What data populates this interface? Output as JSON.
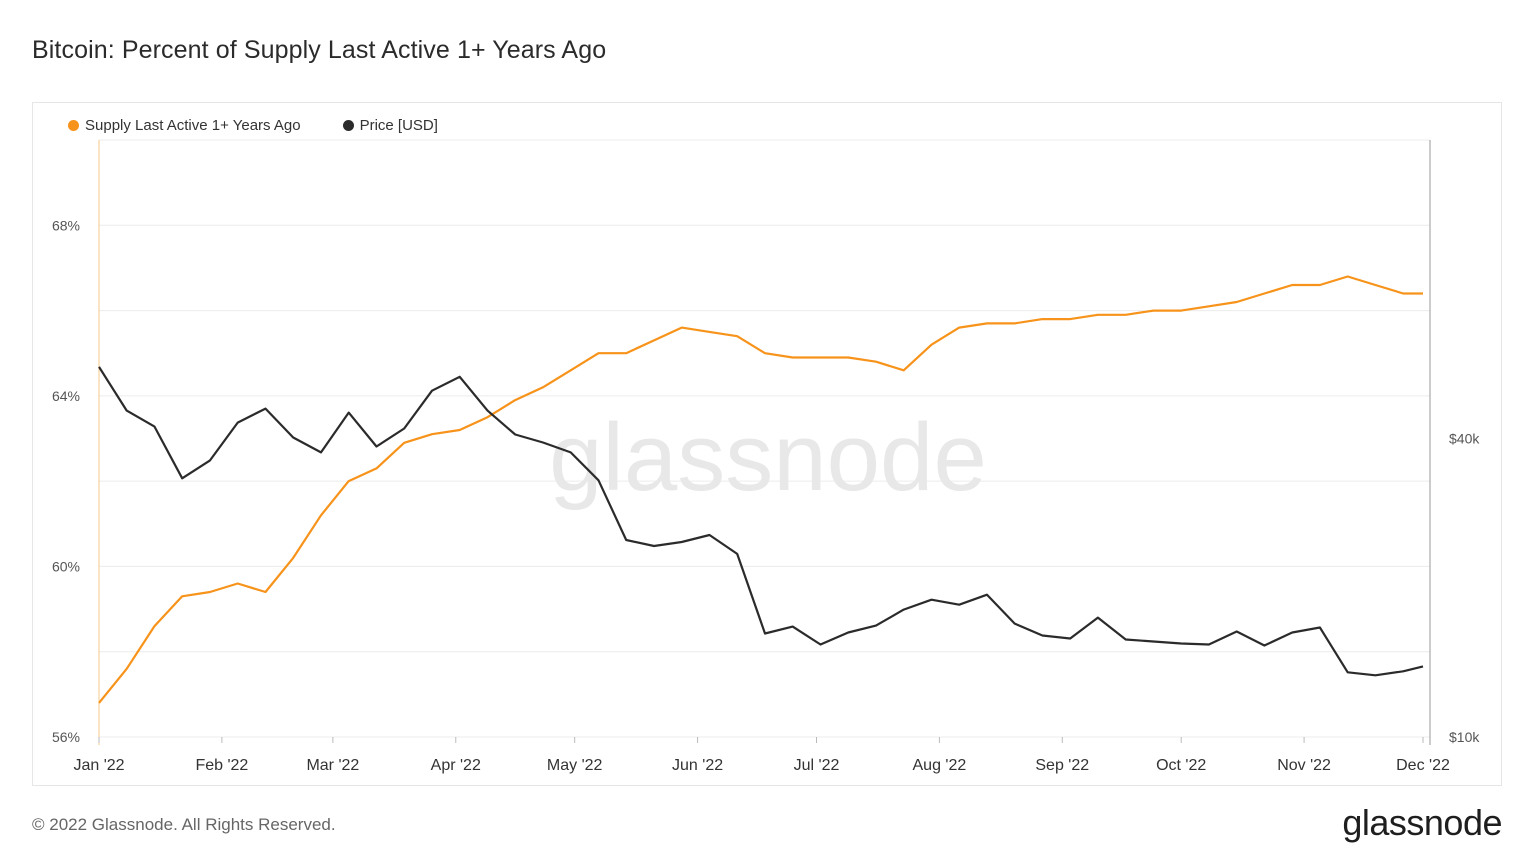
{
  "title": "Bitcoin: Percent of Supply Last Active 1+ Years Ago",
  "footer": {
    "copyright": "© 2022 Glassnode. All Rights Reserved.",
    "logo": "glassnode"
  },
  "watermark": "glassnode",
  "colors": {
    "supply": "#f7931a",
    "price": "#2b2b2b",
    "grid": "#ececec"
  },
  "chart_data": {
    "type": "line",
    "legend_position": "top-left",
    "grid": true,
    "x_ticks": [
      "Jan '22",
      "Feb '22",
      "Mar '22",
      "Apr '22",
      "May '22",
      "Jun '22",
      "Jul '22",
      "Aug '22",
      "Sep '22",
      "Oct '22",
      "Nov '22",
      "Dec '22"
    ],
    "y_left": {
      "ticks": [
        "56%",
        "60%",
        "64%",
        "68%"
      ],
      "range": [
        56,
        70
      ]
    },
    "y_right": {
      "ticks": [
        "$10k",
        "$40k"
      ],
      "range": [
        10000,
        70000
      ],
      "scale": "linear"
    },
    "x": [
      "2022-01-01",
      "2022-01-08",
      "2022-01-15",
      "2022-01-22",
      "2022-01-29",
      "2022-02-05",
      "2022-02-12",
      "2022-02-19",
      "2022-02-26",
      "2022-03-05",
      "2022-03-12",
      "2022-03-19",
      "2022-03-26",
      "2022-04-02",
      "2022-04-09",
      "2022-04-16",
      "2022-04-23",
      "2022-04-30",
      "2022-05-07",
      "2022-05-14",
      "2022-05-21",
      "2022-05-28",
      "2022-06-04",
      "2022-06-11",
      "2022-06-18",
      "2022-06-25",
      "2022-07-02",
      "2022-07-09",
      "2022-07-16",
      "2022-07-23",
      "2022-07-30",
      "2022-08-06",
      "2022-08-13",
      "2022-08-20",
      "2022-08-27",
      "2022-09-03",
      "2022-09-10",
      "2022-09-17",
      "2022-09-24",
      "2022-10-01",
      "2022-10-08",
      "2022-10-15",
      "2022-10-22",
      "2022-10-29",
      "2022-11-05",
      "2022-11-12",
      "2022-11-19",
      "2022-11-26",
      "2022-12-01"
    ],
    "series": [
      {
        "name": "Supply Last Active 1+ Years Ago",
        "axis": "left",
        "values": [
          56.8,
          57.6,
          58.6,
          59.3,
          59.4,
          59.6,
          59.4,
          60.2,
          61.2,
          62.0,
          62.3,
          62.9,
          63.1,
          63.2,
          63.5,
          63.9,
          64.2,
          64.6,
          65.0,
          65.0,
          65.3,
          65.6,
          65.5,
          65.4,
          65.0,
          64.9,
          64.9,
          64.9,
          64.8,
          64.6,
          65.2,
          65.6,
          65.7,
          65.7,
          65.8,
          65.8,
          65.9,
          65.9,
          66.0,
          66.0,
          66.1,
          66.2,
          66.4,
          66.6,
          66.6,
          66.8,
          66.6,
          66.4,
          66.4
        ]
      },
      {
        "name": "Price [USD]",
        "axis": "right",
        "values": [
          47200,
          42800,
          41200,
          36000,
          37800,
          41600,
          43000,
          40100,
          38600,
          42600,
          39200,
          41000,
          44800,
          46200,
          42800,
          40400,
          39600,
          38600,
          35800,
          29800,
          29200,
          29600,
          30300,
          28400,
          20400,
          21100,
          19300,
          20500,
          21200,
          22800,
          23800,
          23300,
          24300,
          21400,
          20200,
          19900,
          22000,
          19800,
          19600,
          19400,
          19300,
          20600,
          19200,
          20500,
          21000,
          16500,
          16200,
          16600,
          17100
        ]
      }
    ]
  }
}
